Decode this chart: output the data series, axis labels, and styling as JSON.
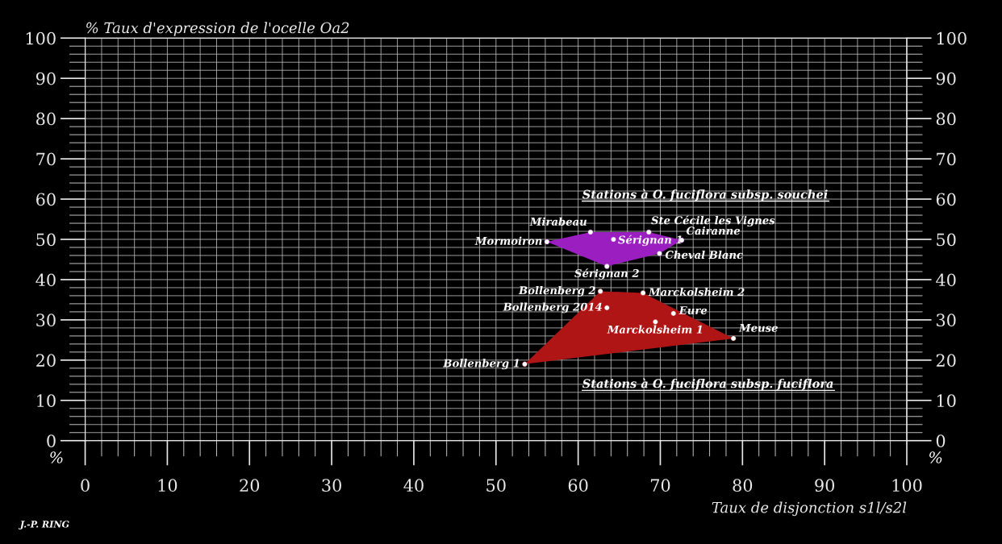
{
  "chart_data": {
    "type": "scatter",
    "ylabel": "% Taux d'expression de l'ocelle Oa2",
    "xlabel": "Taux de disjonction s1l/s2l",
    "xlim": [
      0,
      100
    ],
    "xticks": [
      0,
      10,
      20,
      30,
      40,
      50,
      60,
      70,
      80,
      90,
      100
    ],
    "ylim": [
      0,
      100
    ],
    "yticks": [
      0,
      10,
      20,
      30,
      40,
      50,
      60,
      70,
      80,
      90,
      100
    ],
    "y2lim": [
      0,
      100
    ],
    "y2ticks": [
      0,
      10,
      20,
      30,
      40,
      50,
      60,
      70,
      80,
      90,
      100
    ],
    "grid": true,
    "marker": "circle",
    "series": [
      {
        "color": "#9b1fc0",
        "x": [
          56.2,
          61.5,
          68.6,
          72.6,
          69.9,
          63.5,
          64.3
        ],
        "values": [
          49.4,
          51.8,
          51.8,
          49.8,
          46.5,
          43.3,
          50
        ]
      },
      {
        "color": "#b01515",
        "x": [
          53.5,
          62.7,
          67.9,
          71.6,
          78.9,
          69.4,
          63.5
        ],
        "values": [
          19,
          37.1,
          36.7,
          31.6,
          25.4,
          29.5,
          33
        ]
      }
    ],
    "annotations": [
      {
        "text": "Mormoiron",
        "x": 56.2,
        "y": 49.4
      },
      {
        "text": "Mirabeau",
        "x": 61.5,
        "y": 51.8
      },
      {
        "text": "Ste Cécile les Vignes",
        "x": 68.6,
        "y": 51.8
      },
      {
        "text": "Cairanne",
        "x": 72.6,
        "y": 49.8
      },
      {
        "text": "Cheval Blanc",
        "x": 69.9,
        "y": 46.5
      },
      {
        "text": "Sérignan 2",
        "x": 63.5,
        "y": 43.3
      },
      {
        "text": "Sérignan 1",
        "x": 64.3,
        "y": 50
      },
      {
        "text": "Bollenberg 1",
        "x": 53.5,
        "y": 19
      },
      {
        "text": "Bollenberg 2",
        "x": 62.7,
        "y": 37.1
      },
      {
        "text": "Marckolsheim 2",
        "x": 67.9,
        "y": 36.7
      },
      {
        "text": "Eure",
        "x": 71.6,
        "y": 31.6
      },
      {
        "text": "Meuse",
        "x": 78.9,
        "y": 25.4
      },
      {
        "text": "Marckolsheim 1",
        "x": 69.4,
        "y": 29.5
      },
      {
        "text": "Bollenberg 2014",
        "x": 63.5,
        "y": 33
      },
      "Stations à O. fuciflora subsp. souchei",
      "Stations à O. fuciflora subsp. fuciflora",
      "%",
      "%",
      "J.-P. RING"
    ]
  }
}
